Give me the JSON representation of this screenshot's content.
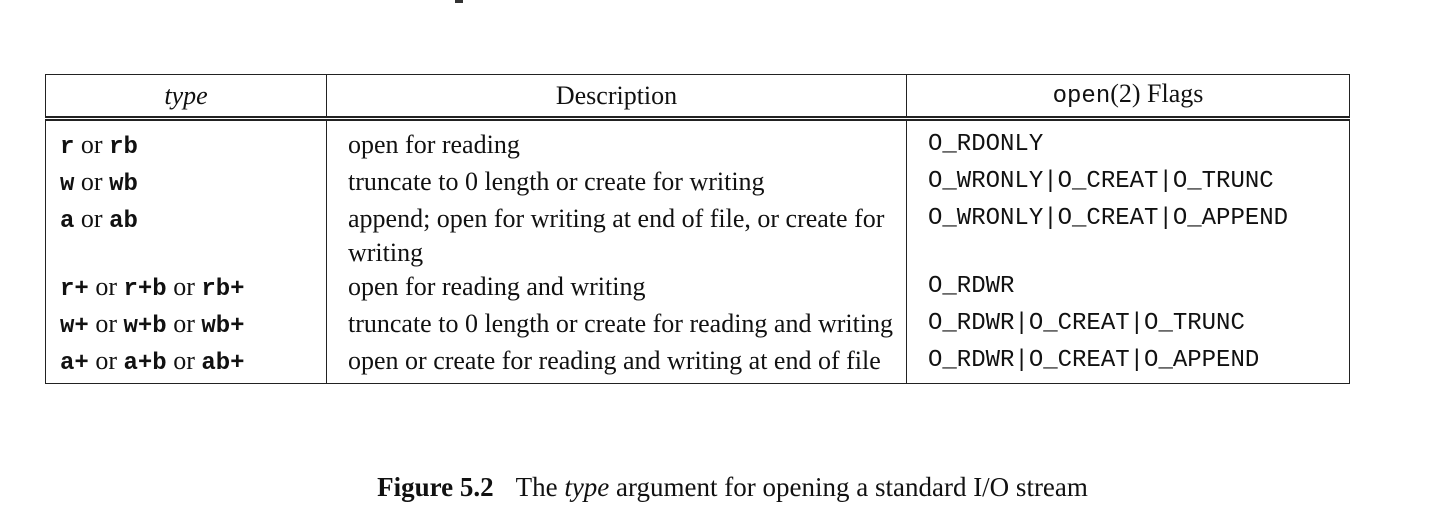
{
  "table": {
    "headers": {
      "type": "type",
      "description": "Description",
      "flags_code": "open",
      "flags_rest": "(2) Flags"
    },
    "rows": [
      {
        "type_parts": [
          "r",
          " or ",
          "rb"
        ],
        "description": "open for reading",
        "flags": "O_RDONLY"
      },
      {
        "type_parts": [
          "w",
          " or ",
          "wb"
        ],
        "description": "truncate to 0 length or create for writing",
        "flags": "O_WRONLY|O_CREAT|O_TRUNC"
      },
      {
        "type_parts": [
          "a",
          " or ",
          "ab"
        ],
        "description": "append; open for writing at end of file, or create for writing",
        "flags": "O_WRONLY|O_CREAT|O_APPEND"
      },
      {
        "type_parts": [
          "r+",
          " or ",
          "r+b",
          " or ",
          "rb+"
        ],
        "description": "open for reading and writing",
        "flags": "O_RDWR"
      },
      {
        "type_parts": [
          "w+",
          " or ",
          "w+b",
          " or ",
          "wb+"
        ],
        "description": "truncate to 0 length or create for reading and writing",
        "flags": "O_RDWR|O_CREAT|O_TRUNC"
      },
      {
        "type_parts": [
          "a+",
          " or ",
          "a+b",
          " or ",
          "ab+"
        ],
        "description": "open or create for reading and writing at end of file",
        "flags": "O_RDWR|O_CREAT|O_APPEND"
      }
    ]
  },
  "caption": {
    "label": "Figure 5.2",
    "text_before": "The ",
    "text_italic": "type",
    "text_after": " argument for opening a standard I/O stream"
  }
}
